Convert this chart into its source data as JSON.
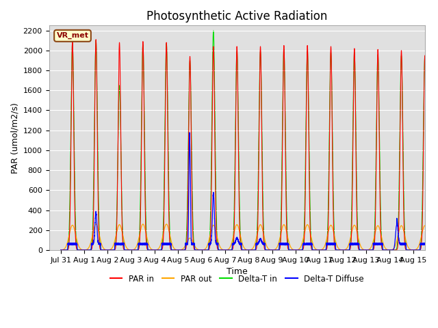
{
  "title": "Photosynthetic Active Radiation",
  "ylabel": "PAR (umol/m2/s)",
  "xlabel": "Time",
  "dataset_label": "VR_met",
  "ylim": [
    0,
    2250
  ],
  "colors": {
    "par_in": "#ff0000",
    "par_out": "#ffa500",
    "delta_t_in": "#00dd00",
    "delta_t_diffuse": "#0000ff"
  },
  "legend_labels": [
    "PAR in",
    "PAR out",
    "Delta-T in",
    "Delta-T Diffuse"
  ],
  "yticks": [
    0,
    200,
    400,
    600,
    800,
    1000,
    1200,
    1400,
    1600,
    1800,
    2000,
    2200
  ],
  "xtick_labels": [
    "Jul 31",
    "Aug 1",
    "Aug 2",
    "Aug 3",
    "Aug 4",
    "Aug 5",
    "Aug 6",
    "Aug 7",
    "Aug 8",
    "Aug 9",
    "Aug 10",
    "Aug 11",
    "Aug 12",
    "Aug 13",
    "Aug 14",
    "Aug 15"
  ],
  "xtick_positions": [
    0,
    1,
    2,
    3,
    4,
    5,
    6,
    7,
    8,
    9,
    10,
    11,
    12,
    13,
    14,
    15
  ],
  "background_color": "#e0e0e0",
  "title_fontsize": 12,
  "label_fontsize": 9,
  "tick_fontsize": 8,
  "xlim": [
    -0.5,
    15.5
  ]
}
